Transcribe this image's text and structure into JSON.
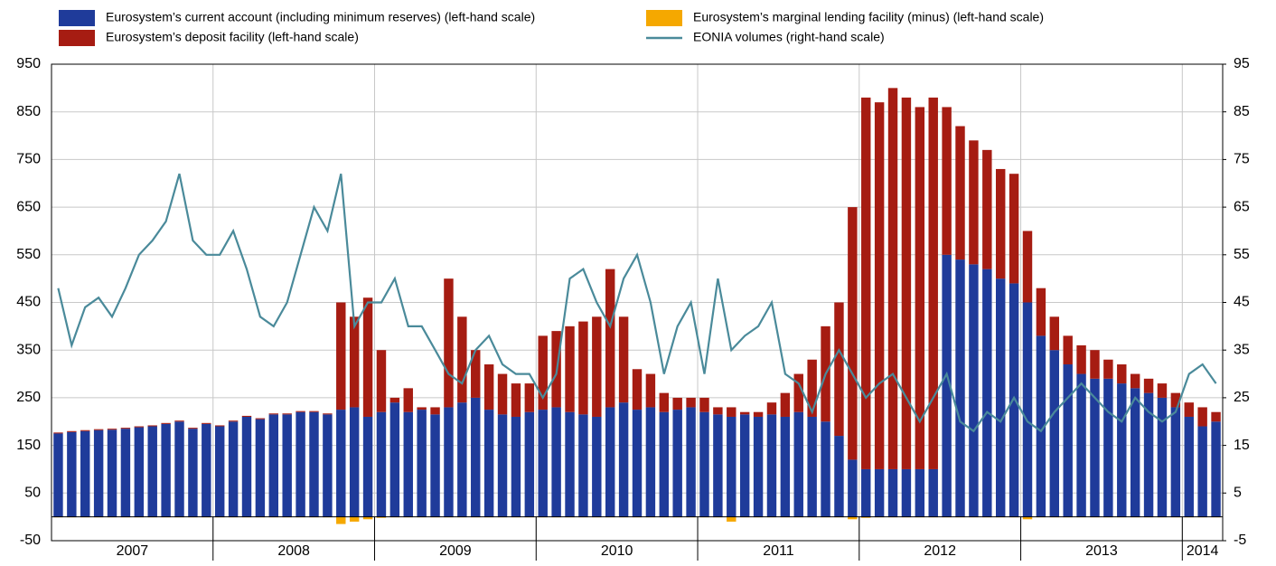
{
  "chart_data": {
    "type": "bar",
    "categories": [
      null,
      null,
      null,
      null,
      null,
      null,
      null,
      null,
      null,
      null,
      null,
      null,
      null,
      null,
      null,
      null,
      null,
      null,
      null,
      null,
      null,
      null,
      null,
      null,
      null,
      null,
      null,
      null,
      null,
      null,
      null,
      null,
      null,
      null,
      null,
      null,
      null,
      null,
      null,
      null,
      null,
      null,
      null,
      null,
      null,
      null,
      null,
      null,
      null,
      null,
      null,
      null,
      null,
      null,
      null,
      null,
      null,
      null,
      null,
      null,
      null,
      null,
      null,
      null,
      null,
      null,
      null,
      null,
      null,
      null,
      null,
      null,
      null,
      null,
      null,
      null,
      null,
      null,
      null,
      null,
      null,
      null,
      null,
      null,
      null,
      null,
      null
    ],
    "x_labels": [
      "2007",
      "2008",
      "2009",
      "2010",
      "2011",
      "2012",
      "2013",
      "2014"
    ],
    "ylim": [
      -50,
      950
    ],
    "yticks": [
      -50,
      50,
      150,
      250,
      350,
      450,
      550,
      650,
      750,
      850,
      950
    ],
    "y2lim": [
      -5,
      95
    ],
    "y2ticks": [
      -5,
      5,
      15,
      25,
      35,
      45,
      55,
      65,
      75,
      85,
      95
    ],
    "grid": true,
    "series": [
      {
        "name": "Eurosystem’s current account (including minimum reserves) (left-hand scale)",
        "color": "#1f3b9a",
        "stack": "pos",
        "values": [
          175,
          178,
          180,
          182,
          183,
          185,
          188,
          190,
          195,
          200,
          185,
          195,
          190,
          200,
          210,
          205,
          215,
          215,
          220,
          220,
          215,
          225,
          230,
          210,
          220,
          240,
          220,
          225,
          215,
          230,
          240,
          250,
          225,
          215,
          210,
          220,
          225,
          230,
          220,
          215,
          210,
          230,
          240,
          225,
          230,
          220,
          225,
          230,
          220,
          215,
          210,
          215,
          210,
          215,
          210,
          220,
          210,
          200,
          170,
          120,
          100,
          100,
          100,
          100,
          100,
          100,
          550,
          540,
          530,
          520,
          500,
          490,
          450,
          380,
          350,
          320,
          300,
          290,
          290,
          280,
          270,
          260,
          250,
          230,
          210,
          190,
          200
        ]
      },
      {
        "name": "Eurosystem’s deposit facility (left-hand scale)",
        "color": "#a61c12",
        "stack": "pos",
        "values": [
          2,
          2,
          2,
          2,
          2,
          2,
          2,
          2,
          2,
          2,
          2,
          2,
          2,
          2,
          2,
          2,
          2,
          2,
          2,
          2,
          2,
          225,
          190,
          250,
          130,
          10,
          50,
          5,
          15,
          270,
          180,
          100,
          95,
          85,
          70,
          60,
          155,
          160,
          180,
          195,
          210,
          290,
          180,
          85,
          70,
          40,
          25,
          20,
          30,
          15,
          20,
          5,
          10,
          25,
          50,
          80,
          120,
          200,
          280,
          530,
          780,
          770,
          800,
          780,
          760,
          780,
          310,
          280,
          260,
          250,
          230,
          230,
          150,
          100,
          70,
          60,
          60,
          60,
          40,
          40,
          30,
          30,
          30,
          30,
          30,
          40,
          20
        ]
      },
      {
        "name": "Eurosystem’s marginal lending facility (minus) (left-hand scale)",
        "color": "#f5a800",
        "stack": "neg",
        "values": [
          -1,
          -1,
          -1,
          -1,
          -1,
          -1,
          -1,
          -1,
          -1,
          -1,
          -1,
          -1,
          -1,
          -1,
          -1,
          -1,
          -1,
          -1,
          -1,
          -1,
          -1,
          -15,
          -10,
          -5,
          -2,
          -1,
          -1,
          -1,
          -1,
          -1,
          -1,
          -1,
          -1,
          -1,
          -1,
          -1,
          -1,
          -1,
          -1,
          -1,
          -1,
          -1,
          -1,
          -1,
          -1,
          -1,
          -1,
          -1,
          -1,
          -1,
          -10,
          -1,
          -1,
          -1,
          -1,
          -1,
          -1,
          -1,
          -1,
          -5,
          -2,
          -1,
          -1,
          -1,
          -1,
          -1,
          -1,
          -1,
          -1,
          -1,
          -1,
          -1,
          -5,
          -1,
          -1,
          -1,
          -1,
          -1,
          -1,
          -1,
          -1,
          -1,
          -1,
          -1,
          -1,
          -1,
          -1
        ]
      },
      {
        "name": "EONIA volumes (right-hand scale)",
        "color": "#4a8a9a",
        "axis": "y2",
        "kind": "line",
        "values": [
          48,
          36,
          44,
          46,
          42,
          48,
          55,
          58,
          62,
          72,
          58,
          55,
          55,
          60,
          52,
          42,
          40,
          45,
          55,
          65,
          60,
          72,
          40,
          45,
          45,
          50,
          40,
          40,
          35,
          30,
          28,
          35,
          38,
          32,
          30,
          30,
          25,
          30,
          50,
          52,
          45,
          40,
          50,
          55,
          45,
          30,
          40,
          45,
          30,
          50,
          35,
          38,
          40,
          45,
          30,
          28,
          22,
          30,
          35,
          30,
          25,
          28,
          30,
          25,
          20,
          25,
          30,
          20,
          18,
          22,
          20,
          25,
          20,
          18,
          22,
          25,
          28,
          25,
          22,
          20,
          25,
          22,
          20,
          22,
          30,
          32,
          28
        ]
      }
    ]
  }
}
